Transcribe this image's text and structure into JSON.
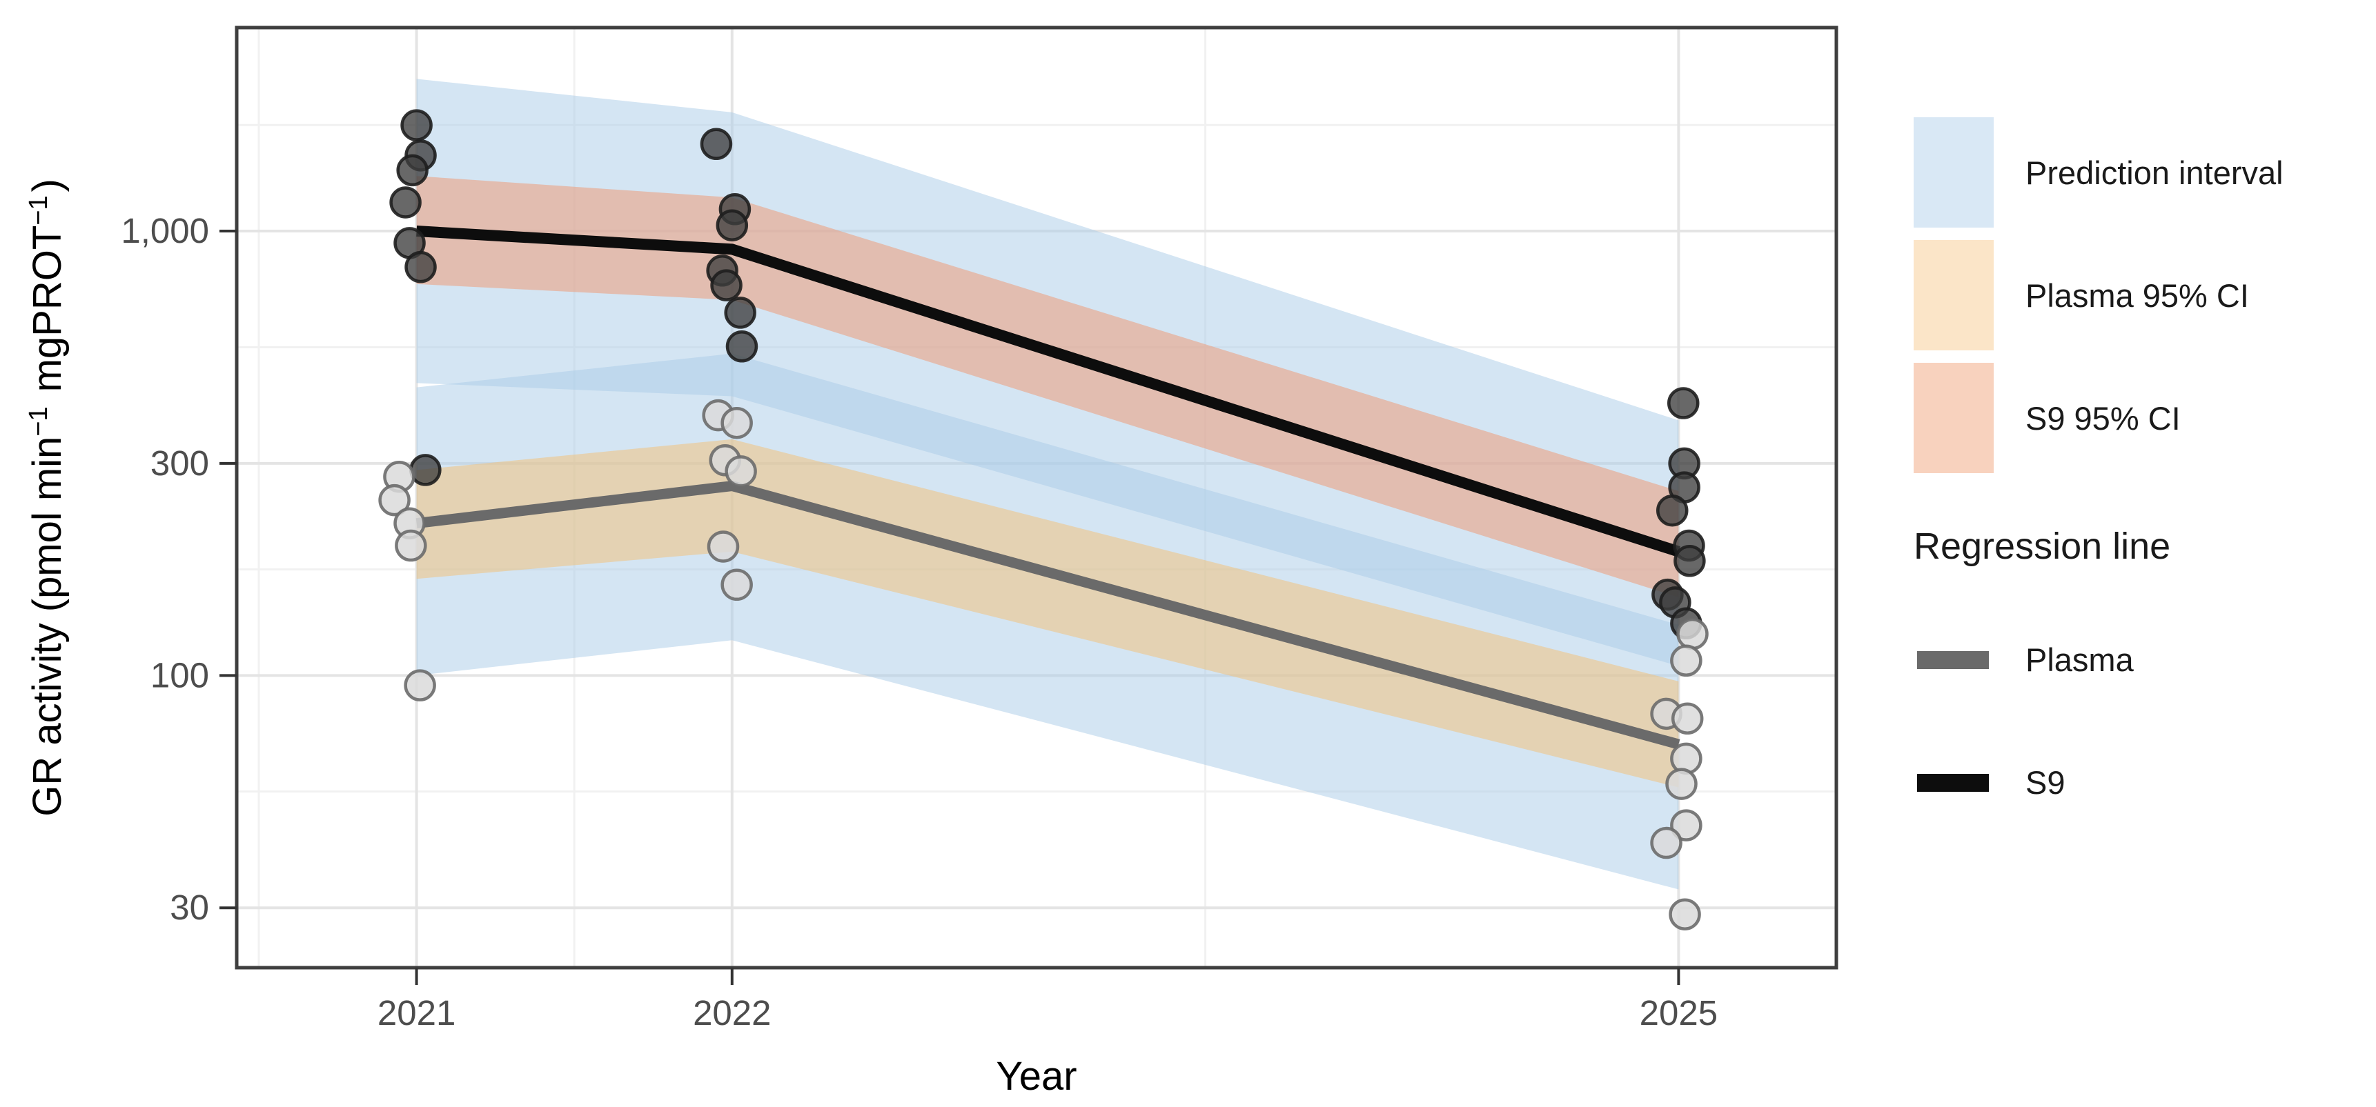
{
  "figure": {
    "description": "Scatter plot on a log10 y-axis of GR activity (pmol per min per mg protein) versus Year (2021, 2022, 2025), with black S9 and gray Plasma regression lines, salmon and tan 95% confidence ribbons, and light blue prediction intervals. Legend at right."
  },
  "chart_data": {
    "type": "scatter",
    "title": "",
    "xlabel": "Year",
    "ylabel": "GR activity (pmol min⁻¹ mgPROT⁻¹)",
    "ylabel_parts": [
      {
        "text": "GR activity (pmol min",
        "sup": false
      },
      {
        "text": "−1",
        "sup": true
      },
      {
        "text": " mgPROT",
        "sup": false
      },
      {
        "text": "−1",
        "sup": true
      },
      {
        "text": ")",
        "sup": false
      }
    ],
    "x_scale": "linear",
    "y_scale": "log10",
    "x_domain": [
      2020.43,
      2025.5
    ],
    "y_domain": [
      22,
      2870
    ],
    "x_ticks": [
      {
        "value": 2021,
        "label": "2021"
      },
      {
        "value": 2022,
        "label": "2022"
      },
      {
        "value": 2025,
        "label": "2025"
      }
    ],
    "y_ticks": [
      {
        "value": 30,
        "label": "30"
      },
      {
        "value": 100,
        "label": "100"
      },
      {
        "value": 300,
        "label": "300"
      },
      {
        "value": 1000,
        "label": "1,000"
      }
    ],
    "x_minor_gridlines": [
      2020.5,
      2021.5,
      2023.5
    ],
    "y_minor_gridlines": [
      54.8,
      173.2,
      547.7,
      1732.1
    ],
    "grid": "on",
    "legend_position": "right",
    "ribbons": [
      {
        "name": "plasma-prediction-interval",
        "legend_label": "Prediction interval",
        "fill": "#A9CBE8",
        "opacity": 0.5,
        "upper": [
          [
            2021,
            445
          ],
          [
            2022,
            530
          ],
          [
            2025,
            130
          ]
        ],
        "lower": [
          [
            2021,
            100
          ],
          [
            2022,
            120
          ],
          [
            2025,
            33
          ]
        ]
      },
      {
        "name": "s9-prediction-interval",
        "legend_label": "Prediction interval",
        "fill": "#A9CBE8",
        "opacity": 0.5,
        "upper": [
          [
            2021,
            2200
          ],
          [
            2022,
            1850
          ],
          [
            2025,
            375
          ]
        ],
        "lower": [
          [
            2021,
            455
          ],
          [
            2022,
            425
          ],
          [
            2025,
            105
          ]
        ]
      },
      {
        "name": "plasma-95-ci",
        "legend_label": "Plasma 95% CI",
        "fill": "#F0C27E",
        "opacity": 0.55,
        "upper": [
          [
            2021,
            290
          ],
          [
            2022,
            340
          ],
          [
            2025,
            97
          ]
        ],
        "lower": [
          [
            2021,
            165
          ],
          [
            2022,
            190
          ],
          [
            2025,
            56
          ]
        ]
      },
      {
        "name": "s9-95-ci",
        "legend_label": "S9 95% CI",
        "fill": "#EBA183",
        "opacity": 0.6,
        "upper": [
          [
            2021,
            1330
          ],
          [
            2022,
            1190
          ],
          [
            2025,
            260
          ]
        ],
        "lower": [
          [
            2021,
            760
          ],
          [
            2022,
            700
          ],
          [
            2025,
            150
          ]
        ]
      }
    ],
    "regression_lines": [
      {
        "name": "Plasma",
        "color": "#6A6A6A",
        "width": 15,
        "points": [
          [
            2021,
            220
          ],
          [
            2022,
            267
          ],
          [
            2025,
            70
          ]
        ]
      },
      {
        "name": "S9",
        "color": "#0D0D0D",
        "width": 16,
        "points": [
          [
            2021,
            1000
          ],
          [
            2022,
            910
          ],
          [
            2025,
            190
          ]
        ]
      }
    ],
    "scatter_series": [
      {
        "name": "S9",
        "point_fill": "#3E3E3E",
        "point_stroke": "#1E1E1E",
        "fill_opacity": 0.78,
        "points": [
          [
            2021.0,
            1730
          ],
          [
            2021.013,
            1480
          ],
          [
            2020.987,
            1370
          ],
          [
            2020.965,
            1160
          ],
          [
            2020.978,
            940
          ],
          [
            2021.013,
            830
          ],
          [
            2021.028,
            290
          ],
          [
            2021.95,
            1570
          ],
          [
            2022.009,
            1120
          ],
          [
            2022.0,
            1030
          ],
          [
            2021.969,
            815
          ],
          [
            2021.982,
            755
          ],
          [
            2022.026,
            655
          ],
          [
            2022.031,
            550
          ],
          [
            2025.015,
            410
          ],
          [
            2025.018,
            300
          ],
          [
            2025.018,
            265
          ],
          [
            2024.98,
            235
          ],
          [
            2025.033,
            196
          ],
          [
            2025.035,
            181
          ],
          [
            2024.965,
            152
          ],
          [
            2024.989,
            146
          ],
          [
            2025.024,
            131
          ]
        ]
      },
      {
        "name": "Plasma",
        "point_fill": "#DBDBDB",
        "point_stroke": "#6B6B6B",
        "fill_opacity": 0.85,
        "points": [
          [
            2020.945,
            280
          ],
          [
            2020.93,
            248
          ],
          [
            2020.978,
            220
          ],
          [
            2020.982,
            196
          ],
          [
            2021.011,
            95
          ],
          [
            2021.956,
            385
          ],
          [
            2022.015,
            370
          ],
          [
            2021.978,
            305
          ],
          [
            2022.028,
            288
          ],
          [
            2021.972,
            195
          ],
          [
            2022.015,
            160
          ],
          [
            2025.044,
            124
          ],
          [
            2025.024,
            108
          ],
          [
            2024.961,
            82
          ],
          [
            2025.028,
            80
          ],
          [
            2025.024,
            65
          ],
          [
            2025.009,
            57
          ],
          [
            2025.024,
            46
          ],
          [
            2024.961,
            42
          ],
          [
            2025.02,
            29
          ]
        ]
      }
    ]
  },
  "legend": {
    "fill_items": [
      {
        "label": "Prediction interval",
        "color": "#D9E8F5"
      },
      {
        "label": "Plasma 95% CI",
        "color": "#FBE5C8"
      },
      {
        "label": "S9 95% CI",
        "color": "#F8D2BE"
      }
    ],
    "line_group_title": "Regression line",
    "line_items": [
      {
        "label": "Plasma",
        "color": "#6A6A6A"
      },
      {
        "label": "S9",
        "color": "#0D0D0D"
      }
    ]
  },
  "colors": {
    "background": "#FFFFFF",
    "grid_major": "#E4E4E4",
    "grid_minor": "#F1F1F1",
    "panel_border": "#3F3F3F",
    "tick_mark": "#333333",
    "tick_label": "#4D4D4D",
    "axis_title": "#000000",
    "legend_text": "#1A1A1A"
  }
}
